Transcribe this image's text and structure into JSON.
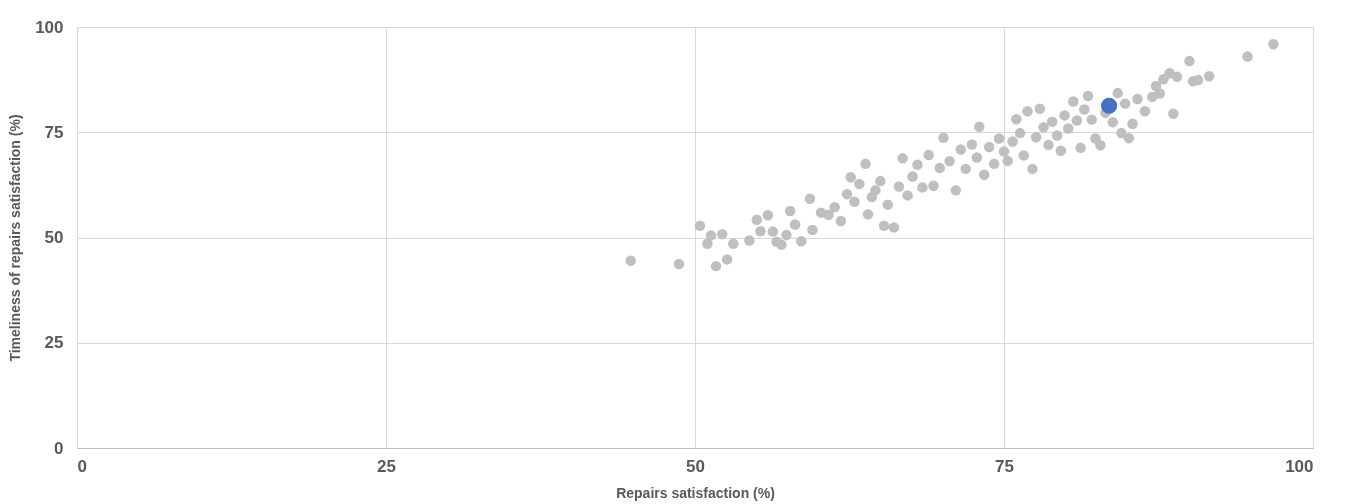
{
  "chart_data": {
    "type": "scatter",
    "xlabel": "Repairs satisfaction (%)",
    "ylabel": "Timeliness of repairs satisfaction (%)",
    "xlim": [
      0,
      100
    ],
    "xticks": [
      0,
      25,
      50,
      75,
      100
    ],
    "ylim": [
      0,
      100
    ],
    "yticks": [
      0,
      25,
      50,
      75,
      100
    ],
    "grid": true,
    "marker": "circle",
    "series": [
      {
        "color": "#bfbfbf",
        "x": [
          44.8,
          48.7,
          50.4,
          51.0,
          51.3,
          51.7,
          52.2,
          52.6,
          53.1,
          54.4,
          55.0,
          55.3,
          55.9,
          56.3,
          56.6,
          57.0,
          57.4,
          57.7,
          58.1,
          58.6,
          59.3,
          59.5,
          60.2,
          60.8,
          61.3,
          61.8,
          62.3,
          62.6,
          62.9,
          63.3,
          63.8,
          64.0,
          64.3,
          64.6,
          65.0,
          65.3,
          65.6,
          66.1,
          66.5,
          66.8,
          67.2,
          67.6,
          68.0,
          68.4,
          68.9,
          69.3,
          69.8,
          70.1,
          70.6,
          71.1,
          71.5,
          71.9,
          72.4,
          72.8,
          73.0,
          73.4,
          73.8,
          74.2,
          74.6,
          75.0,
          75.3,
          75.7,
          76.0,
          76.3,
          76.6,
          76.9,
          77.3,
          77.6,
          77.9,
          78.2,
          78.6,
          78.9,
          79.3,
          79.6,
          79.9,
          80.2,
          80.6,
          80.9,
          81.2,
          81.5,
          81.8,
          82.1,
          82.4,
          82.8,
          83.2,
          83.8,
          84.2,
          84.5,
          84.8,
          85.1,
          85.4,
          85.8,
          86.4,
          87.0,
          87.3,
          87.6,
          87.9,
          88.4,
          88.7,
          89.0,
          90.0,
          90.3,
          90.7,
          91.6,
          94.7,
          96.8
        ],
        "values": [
          44.5,
          43.7,
          52.8,
          48.5,
          50.5,
          43.2,
          50.8,
          44.8,
          48.5,
          49.3,
          54.2,
          51.5,
          55.3,
          51.4,
          49.0,
          48.3,
          50.6,
          56.3,
          53.1,
          49.1,
          59.2,
          51.8,
          55.9,
          55.4,
          57.2,
          53.9,
          60.3,
          64.3,
          58.5,
          62.7,
          67.5,
          55.5,
          59.6,
          61.2,
          63.4,
          52.8,
          57.8,
          52.4,
          62.1,
          68.8,
          60.0,
          64.5,
          67.3,
          61.9,
          69.6,
          62.3,
          66.5,
          73.7,
          68.1,
          61.2,
          70.9,
          66.3,
          72.1,
          69.0,
          76.3,
          64.9,
          71.5,
          67.5,
          73.5,
          70.4,
          68.2,
          72.8,
          78.1,
          74.8,
          69.5,
          80.0,
          66.3,
          73.8,
          80.6,
          76.2,
          72.0,
          77.5,
          74.2,
          70.6,
          79.0,
          75.9,
          82.3,
          77.8,
          71.3,
          80.4,
          83.6,
          78.0,
          73.5,
          71.9,
          79.6,
          77.4,
          84.3,
          74.8,
          81.8,
          73.6,
          77.0,
          82.9,
          80.0,
          83.4,
          86.0,
          84.2,
          87.6,
          89.0,
          79.4,
          88.2,
          91.9,
          87.1,
          87.4,
          88.3,
          93.0,
          95.9
        ]
      },
      {
        "color": "#4472c4",
        "x": [
          83.5
        ],
        "values": [
          81.3
        ]
      }
    ]
  }
}
